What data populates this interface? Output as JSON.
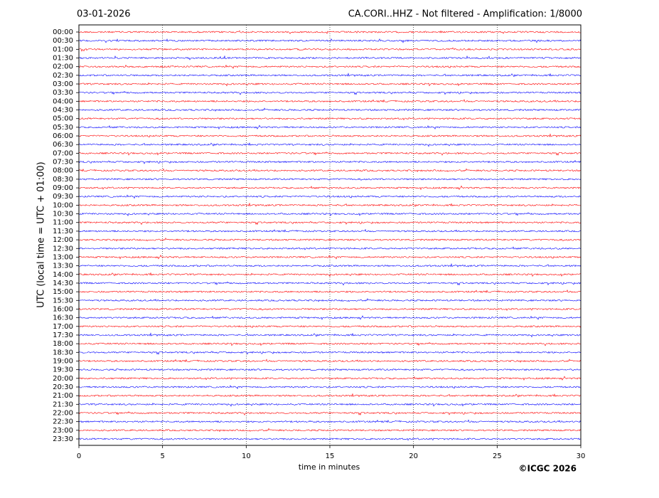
{
  "chart_data": {
    "type": "helicorder",
    "date": "03-01-2026",
    "title": "CA.CORI..HHZ - Not filtered - Amplification: 1/8000",
    "ylabel": "UTC (local time = UTC + 01:00)",
    "xlabel": "time in minutes",
    "copyright": "©ICGC 2026",
    "categories": [
      "00:00",
      "00:30",
      "01:00",
      "01:30",
      "02:00",
      "02:30",
      "03:00",
      "03:30",
      "04:00",
      "04:30",
      "05:00",
      "05:30",
      "06:00",
      "06:30",
      "07:00",
      "07:30",
      "08:00",
      "08:30",
      "09:00",
      "09:30",
      "10:00",
      "10:30",
      "11:00",
      "11:30",
      "12:00",
      "12:30",
      "13:00",
      "13:30",
      "14:00",
      "14:30",
      "15:00",
      "15:30",
      "16:00",
      "16:30",
      "17:00",
      "17:30",
      "18:00",
      "18:30",
      "19:00",
      "19:30",
      "20:00",
      "20:30",
      "21:00",
      "21:30",
      "22:00",
      "22:30",
      "23:00",
      "23:30"
    ],
    "colors": [
      "#ff0000",
      "#0000ff"
    ],
    "xlim": [
      0,
      30
    ],
    "xticks": [
      0,
      5,
      10,
      15,
      20,
      25,
      30
    ],
    "grid": true
  }
}
